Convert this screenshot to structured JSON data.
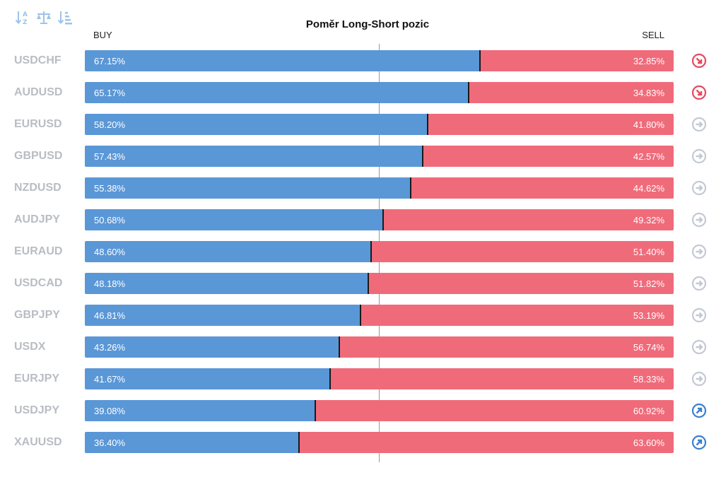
{
  "title": "Poměr Long-Short pozic",
  "buy_label": "BUY",
  "sell_label": "SELL",
  "toolbar": {
    "sort_alpha_icon": "sort-alpha-icon",
    "balance_icon": "scale-balance-icon",
    "sort_amount_icon": "sort-amount-icon"
  },
  "colors": {
    "buy": "#5a97d7",
    "sell": "#f06b7a",
    "signal_bearish": "#e8485c",
    "signal_neutral": "#c3cad3",
    "signal_bullish": "#3a7fd0"
  },
  "chart_data": {
    "type": "bar",
    "orientation": "horizontal-stacked",
    "title": "Poměr Long-Short pozic",
    "xlim": [
      0,
      100
    ],
    "unit": "%",
    "categories": [
      "USDCHF",
      "AUDUSD",
      "EURUSD",
      "GBPUSD",
      "NZDUSD",
      "AUDJPY",
      "EURAUD",
      "USDCAD",
      "GBPJPY",
      "USDX",
      "EURJPY",
      "USDJPY",
      "XAUUSD"
    ],
    "series": [
      {
        "name": "BUY",
        "values": [
          67.15,
          65.17,
          58.2,
          57.43,
          55.38,
          50.68,
          48.6,
          48.18,
          46.81,
          43.26,
          41.67,
          39.08,
          36.4
        ]
      },
      {
        "name": "SELL",
        "values": [
          32.85,
          34.83,
          41.8,
          42.57,
          44.62,
          49.32,
          51.4,
          51.82,
          53.19,
          56.74,
          58.33,
          60.92,
          63.6
        ]
      }
    ],
    "buy_labels": [
      "67.15%",
      "65.17%",
      "58.20%",
      "57.43%",
      "55.38%",
      "50.68%",
      "48.60%",
      "48.18%",
      "46.81%",
      "43.26%",
      "41.67%",
      "39.08%",
      "36.40%"
    ],
    "sell_labels": [
      "32.85%",
      "34.83%",
      "41.80%",
      "42.57%",
      "44.62%",
      "49.32%",
      "51.40%",
      "51.82%",
      "53.19%",
      "56.74%",
      "58.33%",
      "60.92%",
      "63.60%"
    ],
    "signals": [
      "bearish",
      "bearish",
      "neutral",
      "neutral",
      "neutral",
      "neutral",
      "neutral",
      "neutral",
      "neutral",
      "neutral",
      "neutral",
      "bullish",
      "bullish"
    ],
    "grid": false,
    "legend": "top"
  }
}
